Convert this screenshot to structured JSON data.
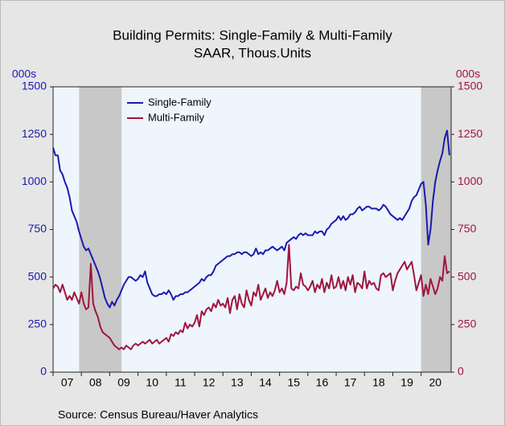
{
  "chart_data": {
    "type": "line",
    "title": "Building Permits: Single-Family & Multi-Family",
    "subtitle": "SAAR, Thous.Units",
    "y_label": "000s",
    "y2_label": "000s",
    "source": "Source:  Census Bureau/Haver Analytics",
    "xlim": [
      2007,
      2021.06
    ],
    "xticks": [
      {
        "value": 2007,
        "label": "07"
      },
      {
        "value": 2008,
        "label": "08"
      },
      {
        "value": 2009,
        "label": "09"
      },
      {
        "value": 2010,
        "label": "10"
      },
      {
        "value": 2011,
        "label": "11"
      },
      {
        "value": 2012,
        "label": "12"
      },
      {
        "value": 2013,
        "label": "13"
      },
      {
        "value": 2014,
        "label": "14"
      },
      {
        "value": 2015,
        "label": "15"
      },
      {
        "value": 2016,
        "label": "16"
      },
      {
        "value": 2017,
        "label": "17"
      },
      {
        "value": 2018,
        "label": "18"
      },
      {
        "value": 2019,
        "label": "19"
      },
      {
        "value": 2020,
        "label": "20"
      }
    ],
    "ylim": [
      0,
      1500
    ],
    "yticks": [
      0,
      250,
      500,
      750,
      1000,
      1250,
      1500
    ],
    "y2lim": [
      0,
      1500
    ],
    "y2ticks": [
      0,
      250,
      500,
      750,
      1000,
      1250,
      1500
    ],
    "recessions": [
      [
        2007.92,
        2009.42
      ],
      [
        2020.0,
        2021.06
      ]
    ],
    "legend": "upper-left",
    "x": [
      2007,
      2007.083,
      2007.167,
      2007.25,
      2007.333,
      2007.417,
      2007.5,
      2007.583,
      2007.667,
      2007.75,
      2007.833,
      2007.917,
      2008,
      2008.083,
      2008.167,
      2008.25,
      2008.333,
      2008.417,
      2008.5,
      2008.583,
      2008.667,
      2008.75,
      2008.833,
      2008.917,
      2009,
      2009.083,
      2009.167,
      2009.25,
      2009.333,
      2009.417,
      2009.5,
      2009.583,
      2009.667,
      2009.75,
      2009.833,
      2009.917,
      2010,
      2010.083,
      2010.167,
      2010.25,
      2010.333,
      2010.417,
      2010.5,
      2010.583,
      2010.667,
      2010.75,
      2010.833,
      2010.917,
      2011,
      2011.083,
      2011.167,
      2011.25,
      2011.333,
      2011.417,
      2011.5,
      2011.583,
      2011.667,
      2011.75,
      2011.833,
      2011.917,
      2012,
      2012.083,
      2012.167,
      2012.25,
      2012.333,
      2012.417,
      2012.5,
      2012.583,
      2012.667,
      2012.75,
      2012.833,
      2012.917,
      2013,
      2013.083,
      2013.167,
      2013.25,
      2013.333,
      2013.417,
      2013.5,
      2013.583,
      2013.667,
      2013.75,
      2013.833,
      2013.917,
      2014,
      2014.083,
      2014.167,
      2014.25,
      2014.333,
      2014.417,
      2014.5,
      2014.583,
      2014.667,
      2014.75,
      2014.833,
      2014.917,
      2015,
      2015.083,
      2015.167,
      2015.25,
      2015.333,
      2015.417,
      2015.5,
      2015.583,
      2015.667,
      2015.75,
      2015.833,
      2015.917,
      2016,
      2016.083,
      2016.167,
      2016.25,
      2016.333,
      2016.417,
      2016.5,
      2016.583,
      2016.667,
      2016.75,
      2016.833,
      2016.917,
      2017,
      2017.083,
      2017.167,
      2017.25,
      2017.333,
      2017.417,
      2017.5,
      2017.583,
      2017.667,
      2017.75,
      2017.833,
      2017.917,
      2018,
      2018.083,
      2018.167,
      2018.25,
      2018.333,
      2018.417,
      2018.5,
      2018.583,
      2018.667,
      2018.75,
      2018.833,
      2018.917,
      2019,
      2019.083,
      2019.167,
      2019.25,
      2019.333,
      2019.417,
      2019.5,
      2019.583,
      2019.667,
      2019.75,
      2019.833,
      2019.917,
      2020,
      2020.083,
      2020.167,
      2020.25,
      2020.333,
      2020.417,
      2020.5,
      2020.583,
      2020.667,
      2020.75,
      2020.833,
      2020.917,
      2021
    ],
    "series": [
      {
        "name": "Single-Family",
        "color": "#1a1ab0",
        "values": [
          1180,
          1140,
          1140,
          1060,
          1040,
          1000,
          970,
          920,
          850,
          820,
          790,
          740,
          700,
          660,
          640,
          650,
          620,
          590,
          560,
          530,
          490,
          440,
          390,
          360,
          340,
          370,
          350,
          380,
          400,
          430,
          460,
          480,
          500,
          500,
          490,
          480,
          490,
          510,
          500,
          530,
          470,
          440,
          410,
          400,
          400,
          410,
          410,
          420,
          410,
          430,
          410,
          380,
          400,
          400,
          410,
          410,
          420,
          420,
          430,
          440,
          450,
          460,
          470,
          490,
          480,
          500,
          510,
          510,
          530,
          560,
          570,
          580,
          590,
          600,
          610,
          610,
          620,
          620,
          630,
          630,
          620,
          630,
          630,
          620,
          610,
          620,
          650,
          620,
          630,
          620,
          640,
          640,
          650,
          660,
          650,
          640,
          650,
          660,
          640,
          680,
          690,
          700,
          710,
          700,
          720,
          730,
          720,
          730,
          720,
          720,
          720,
          740,
          730,
          740,
          740,
          720,
          750,
          760,
          780,
          790,
          800,
          820,
          800,
          820,
          800,
          810,
          830,
          830,
          840,
          860,
          870,
          850,
          860,
          870,
          870,
          860,
          860,
          860,
          850,
          860,
          880,
          870,
          850,
          830,
          820,
          810,
          800,
          810,
          800,
          820,
          840,
          860,
          900,
          920,
          930,
          960,
          990,
          1000,
          880,
          670,
          750,
          900,
          1000,
          1060,
          1110,
          1150,
          1230,
          1270,
          1140
        ]
      },
      {
        "name": "Multi-Family",
        "color": "#a0153e",
        "axis": "y2",
        "values": [
          440,
          460,
          450,
          420,
          460,
          420,
          380,
          400,
          380,
          420,
          390,
          360,
          420,
          360,
          330,
          340,
          570,
          360,
          320,
          290,
          240,
          210,
          200,
          190,
          180,
          160,
          140,
          130,
          120,
          130,
          120,
          140,
          130,
          120,
          140,
          150,
          140,
          150,
          160,
          150,
          160,
          170,
          150,
          160,
          170,
          150,
          160,
          170,
          180,
          160,
          200,
          190,
          210,
          200,
          220,
          210,
          260,
          230,
          250,
          240,
          260,
          300,
          240,
          320,
          300,
          330,
          340,
          320,
          360,
          340,
          380,
          350,
          360,
          340,
          390,
          310,
          380,
          400,
          330,
          410,
          360,
          340,
          430,
          380,
          350,
          420,
          400,
          460,
          380,
          410,
          440,
          390,
          420,
          400,
          430,
          480,
          420,
          440,
          410,
          470,
          670,
          440,
          430,
          450,
          440,
          520,
          460,
          450,
          430,
          450,
          480,
          420,
          460,
          440,
          490,
          420,
          470,
          440,
          510,
          440,
          450,
          500,
          440,
          480,
          430,
          500,
          460,
          510,
          420,
          470,
          460,
          440,
          530,
          440,
          480,
          460,
          470,
          440,
          430,
          510,
          520,
          500,
          510,
          520,
          430,
          480,
          520,
          540,
          560,
          580,
          540,
          560,
          580,
          510,
          430,
          470,
          510,
          400,
          460,
          410,
          490,
          450,
          410,
          440,
          500,
          480,
          610,
          520,
          530
        ]
      }
    ]
  }
}
